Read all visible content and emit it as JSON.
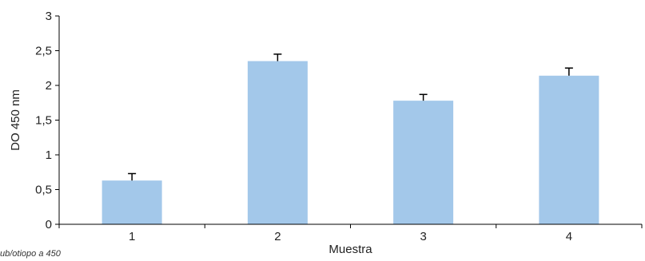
{
  "chart_data": {
    "type": "bar",
    "categories": [
      "1",
      "2",
      "3",
      "4"
    ],
    "values": [
      0.63,
      2.35,
      1.78,
      2.14
    ],
    "error": [
      0.1,
      0.1,
      0.09,
      0.11
    ],
    "title": "",
    "xlabel": "Muestra",
    "ylabel": "DO 450 nm",
    "ylim": [
      0,
      3
    ],
    "yticks": [
      0,
      0.5,
      1,
      1.5,
      2,
      2.5,
      3
    ],
    "ytick_labels": [
      "0",
      "0,5",
      "1",
      "1,5",
      "2",
      "2,5",
      "3"
    ],
    "grid": false,
    "bar_color": "#a3c8ea",
    "error_color": "#000000"
  },
  "footnote": "ub/otiopo a 450"
}
